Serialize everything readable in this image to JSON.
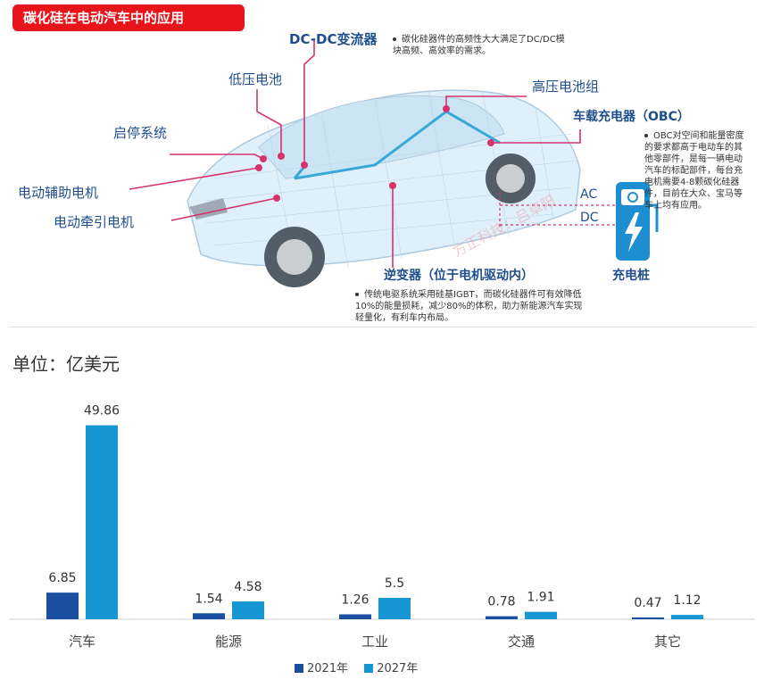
{
  "header": {
    "title": "碳化硅在电动汽车中的应用"
  },
  "diagram": {
    "labels": {
      "dcdc": "DC-DC变流器",
      "low_voltage_battery": "低压电池",
      "hv_battery": "高压电池组",
      "start_stop": "启停系统",
      "aux_motor": "电动辅助电机",
      "traction_motor": "电动牵引电机",
      "obc": "车载充电器（OBC）",
      "inverter": "逆变器（位于电机驱动内）",
      "ac": "AC",
      "dc": "DC",
      "charging_pile": "充电桩",
      "watermark": "方正科技：吕卓阳"
    },
    "notes": {
      "dcdc_note": "碳化硅器件的高频性大大满足了DC/DC模块高频、高效率的需求。",
      "obc_note": "OBC对空间和能量密度的要求都高于电动车的其他零部件，是每一辆电动汽车的标配部件，每台充电机需要4-8颗碳化硅器件，目前在大众、宝马等车上均有应用。",
      "inverter_note": "传统电驱系统采用硅基IGBT，而碳化硅器件可有效降低10%的能量损耗，减少80%的体积，助力新能源汽车实现轻量化，有利车内布局。"
    }
  },
  "unit_label": "单位：亿美元",
  "colors": {
    "series_2021": "#1a4fa0",
    "series_2027": "#1697d4",
    "accent_red": "#e8141c",
    "label_blue": "#1f4e8c",
    "pink": "#d6336c"
  },
  "chart_data": {
    "type": "bar",
    "categories": [
      "汽车",
      "能源",
      "工业",
      "交通",
      "其它"
    ],
    "series": [
      {
        "name": "2021年",
        "values": [
          6.85,
          1.54,
          1.26,
          0.78,
          0.47
        ],
        "labels": [
          "6.85",
          "1.54",
          "1.26",
          "0.78",
          "0.47"
        ]
      },
      {
        "name": "2027年",
        "values": [
          49.86,
          4.58,
          5.5,
          1.91,
          1.12
        ],
        "labels": [
          "49.86",
          "4.58",
          "5.5",
          "1.91",
          "1.12"
        ]
      }
    ],
    "ylim": [
      0,
      50
    ],
    "legend_position": "bottom",
    "grid": false
  }
}
